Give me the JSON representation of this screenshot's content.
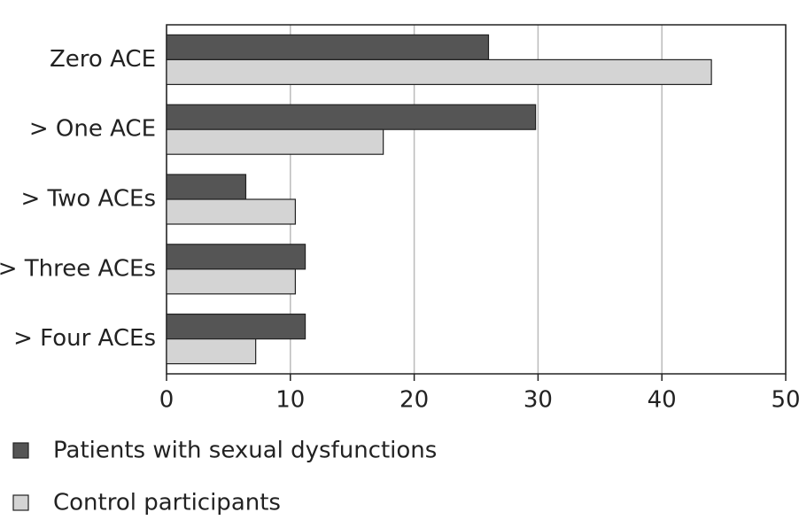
{
  "chart_data": {
    "type": "hbar",
    "categories": [
      "Zero ACE",
      "> One ACE",
      "> Two ACEs",
      "> Three ACEs",
      "> Four ACEs"
    ],
    "series": [
      {
        "name": "Patients with sexual dysfunctions",
        "color": "#555555",
        "values": [
          26,
          29.8,
          6.4,
          11.2,
          11.2
        ]
      },
      {
        "name": "Control participants",
        "color": "#d4d4d4",
        "values": [
          44,
          17.5,
          10.4,
          10.4,
          7.2
        ]
      }
    ],
    "xlim": [
      0,
      50
    ],
    "xticks": [
      0,
      10,
      20,
      30,
      40,
      50
    ],
    "grid": true,
    "legend": "bottom"
  }
}
